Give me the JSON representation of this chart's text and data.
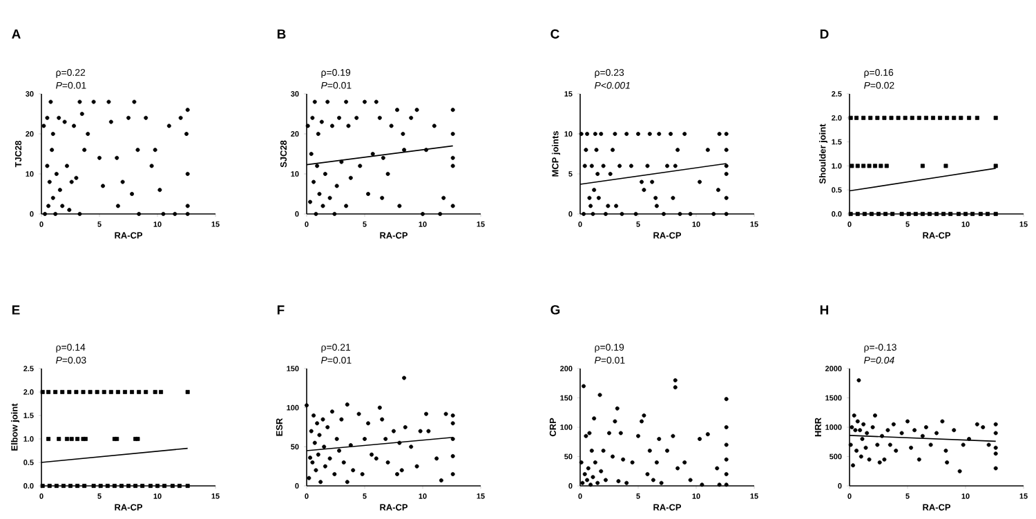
{
  "chart_data": [
    {
      "type": "scatter",
      "title": "A",
      "xlabel": "RA-CP",
      "ylabel": "TJC28",
      "annotations": [
        "ρ=0.22",
        "*P*=0.01"
      ],
      "xlim": [
        0,
        15
      ],
      "xticks": [
        0,
        5,
        10,
        15
      ],
      "ylim": [
        0,
        30
      ],
      "yticks": [
        0,
        10,
        20,
        30
      ],
      "marker": "circle",
      "series": [
        {
          "color": "#000000",
          "x": [
            0.2,
            0.3,
            0.5,
            0.5,
            0.6,
            0.7,
            0.8,
            0.9,
            1.0,
            1.0,
            1.2,
            1.3,
            1.5,
            1.6,
            1.8,
            2.0,
            2.2,
            2.4,
            2.6,
            2.8,
            3.0,
            3.3,
            3.3,
            3.5,
            3.7,
            4.0,
            4.5,
            5.0,
            5.3,
            5.8,
            6.0,
            6.5,
            6.6,
            7.0,
            7.5,
            7.8,
            8.0,
            8.3,
            8.4,
            9.0,
            9.5,
            9.8,
            10.2,
            10.5,
            11.0,
            11.5,
            12.0,
            12.5,
            12.6,
            12.6,
            12.6,
            12.6
          ],
          "values": [
            22,
            0,
            24,
            12,
            2,
            8,
            28,
            16,
            20,
            4,
            0,
            10,
            24,
            6,
            2,
            23,
            12,
            1,
            8,
            22,
            9,
            28,
            0,
            25,
            16,
            20,
            28,
            14,
            7,
            28,
            23,
            14,
            2,
            8,
            24,
            5,
            28,
            16,
            0,
            24,
            12,
            16,
            6,
            0,
            22,
            0,
            24,
            20,
            2,
            10,
            0,
            26
          ]
        }
      ]
    },
    {
      "type": "scatter",
      "title": "B",
      "xlabel": "RA-CP",
      "ylabel": "SJC28",
      "annotations": [
        "ρ=0.19",
        "*P*=0.01"
      ],
      "xlim": [
        0,
        15
      ],
      "xticks": [
        0,
        5,
        10,
        15
      ],
      "ylim": [
        0,
        30
      ],
      "yticks": [
        0,
        10,
        20,
        30
      ],
      "marker": "circle",
      "series": [
        {
          "color": "#000000",
          "x": [
            0.1,
            0.3,
            0.4,
            0.5,
            0.6,
            0.7,
            0.8,
            0.9,
            1.0,
            1.1,
            1.3,
            1.4,
            1.6,
            1.8,
            2.0,
            2.2,
            2.4,
            2.6,
            2.8,
            3.0,
            3.4,
            3.4,
            3.6,
            3.8,
            4.3,
            4.6,
            5.0,
            5.3,
            5.7,
            6.0,
            6.3,
            6.5,
            6.6,
            7.0,
            7.3,
            7.8,
            8.0,
            8.3,
            8.4,
            9.0,
            9.5,
            10.0,
            10.3,
            11.0,
            11.5,
            11.8,
            12.6,
            12.6,
            12.6,
            12.6,
            12.6
          ],
          "values": [
            22,
            3,
            15,
            24,
            8,
            28,
            0,
            12,
            20,
            5,
            23,
            2,
            10,
            28,
            4,
            22,
            0,
            7,
            24,
            13,
            28,
            2,
            22,
            9,
            24,
            12,
            28,
            5,
            15,
            28,
            24,
            4,
            14,
            10,
            22,
            26,
            2,
            20,
            16,
            24,
            26,
            0,
            16,
            22,
            0,
            4,
            26,
            20,
            14,
            2,
            12
          ]
        },
        {
          "type": "line",
          "marker": "none",
          "color": "#000000",
          "x": [
            0,
            12.6
          ],
          "values": [
            12.3,
            17
          ]
        }
      ]
    },
    {
      "type": "scatter",
      "title": "C",
      "xlabel": "RA-CP",
      "ylabel": "MCP joints",
      "annotations": [
        "ρ=0.23",
        "*P<0.001*"
      ],
      "xlim": [
        0,
        15
      ],
      "xticks": [
        0,
        5,
        10,
        15
      ],
      "ylim": [
        0,
        15
      ],
      "yticks": [
        0,
        5,
        10,
        15
      ],
      "marker": "circle",
      "series": [
        {
          "color": "#000000",
          "x": [
            0.1,
            0.3,
            0.4,
            0.5,
            0.6,
            0.8,
            0.9,
            1.0,
            1.1,
            1.2,
            1.3,
            1.4,
            1.5,
            1.6,
            1.8,
            2.0,
            2.2,
            2.4,
            2.6,
            2.8,
            3.0,
            3.1,
            3.4,
            3.6,
            4.0,
            4.4,
            4.8,
            5.0,
            5.3,
            5.5,
            5.8,
            6.0,
            6.2,
            6.5,
            6.6,
            6.8,
            7.2,
            7.5,
            7.8,
            8.0,
            8.2,
            8.4,
            8.6,
            9.0,
            9.5,
            10.3,
            11.0,
            11.5,
            11.9,
            12.0,
            12.6,
            12.6,
            12.6,
            12.6,
            12.6,
            12.6
          ],
          "values": [
            10,
            0,
            6,
            8,
            10,
            2,
            1,
            6,
            0,
            3,
            10,
            8,
            5,
            2,
            10,
            6,
            0,
            1,
            5,
            8,
            10,
            1,
            6,
            0,
            10,
            6,
            0,
            10,
            4,
            3,
            6,
            10,
            4,
            2,
            1,
            10,
            0,
            6,
            10,
            2,
            6,
            8,
            0,
            10,
            0,
            4,
            8,
            0,
            3,
            10,
            10,
            8,
            6,
            5,
            2,
            0
          ]
        },
        {
          "type": "line",
          "marker": "none",
          "color": "#000000",
          "x": [
            0,
            12.6
          ],
          "values": [
            3.7,
            6.3
          ]
        }
      ]
    },
    {
      "type": "scatter",
      "title": "D",
      "xlabel": "RA-CP",
      "ylabel": "Shoulder joint",
      "annotations": [
        "ρ=0.16",
        "*P*=0.02"
      ],
      "xlim": [
        0,
        15
      ],
      "xticks": [
        0,
        5,
        10,
        15
      ],
      "ylim": [
        0,
        2.5
      ],
      "yticks": [
        {
          "value": 0,
          "label": "0.0"
        },
        {
          "value": 0.5,
          "label": "0.5"
        },
        {
          "value": 1,
          "label": "1.0"
        },
        {
          "value": 1.5,
          "label": "1.5"
        },
        {
          "value": 2,
          "label": "2.0"
        },
        {
          "value": 2.5,
          "label": "2.5"
        }
      ],
      "marker": "square",
      "series": [
        {
          "color": "#000000",
          "x": [
            0.1,
            0.6,
            1.2,
            1.8,
            2.4,
            3.0,
            3.6,
            4.2,
            4.8,
            5.4,
            6.0,
            6.6,
            7.2,
            7.8,
            8.4,
            9.0,
            9.6,
            10.3,
            11.0,
            12.6,
            0.2,
            0.7,
            1.2,
            1.7,
            2.2,
            2.7,
            3.2,
            6.3,
            8.3,
            12.6,
            0.1,
            0.7,
            1.3,
            1.9,
            2.5,
            3.1,
            3.7,
            4.5,
            5.1,
            5.7,
            6.3,
            6.9,
            7.5,
            8.1,
            8.7,
            9.4,
            10.0,
            10.6,
            11.3,
            11.9,
            12.6
          ],
          "values": [
            2,
            2,
            2,
            2,
            2,
            2,
            2,
            2,
            2,
            2,
            2,
            2,
            2,
            2,
            2,
            2,
            2,
            2,
            2,
            2,
            1,
            1,
            1,
            1,
            1,
            1,
            1,
            1,
            1,
            1,
            0,
            0,
            0,
            0,
            0,
            0,
            0,
            0,
            0,
            0,
            0,
            0,
            0,
            0,
            0,
            0,
            0,
            0,
            0,
            0,
            0
          ]
        },
        {
          "type": "line",
          "marker": "none",
          "color": "#000000",
          "x": [
            0,
            12.6
          ],
          "values": [
            0.48,
            0.95
          ]
        }
      ]
    },
    {
      "type": "scatter",
      "title": "E",
      "xlabel": "RA-CP",
      "ylabel": "Elbow joint",
      "annotations": [
        "ρ=0.14",
        "*P*=0.03"
      ],
      "xlim": [
        0,
        15
      ],
      "xticks": [
        0,
        5,
        10,
        15
      ],
      "ylim": [
        0,
        2.5
      ],
      "yticks": [
        {
          "value": 0,
          "label": "0.0"
        },
        {
          "value": 0.5,
          "label": "0.5"
        },
        {
          "value": 1,
          "label": "1.0"
        },
        {
          "value": 1.5,
          "label": "1.5"
        },
        {
          "value": 2,
          "label": "2.0"
        },
        {
          "value": 2.5,
          "label": "2.5"
        }
      ],
      "marker": "square",
      "series": [
        {
          "color": "#000000",
          "x": [
            0.1,
            0.6,
            1.2,
            1.8,
            2.4,
            3.0,
            3.6,
            4.2,
            4.8,
            5.4,
            6.0,
            6.6,
            7.2,
            7.8,
            8.4,
            9.0,
            9.8,
            10.3,
            12.6,
            0.6,
            1.5,
            2.2,
            2.6,
            3.1,
            3.6,
            3.8,
            6.3,
            6.5,
            8.1,
            8.3,
            0.1,
            0.7,
            1.3,
            1.9,
            2.5,
            3.1,
            3.7,
            4.5,
            5.1,
            5.7,
            6.3,
            6.9,
            7.5,
            8.1,
            8.7,
            9.4,
            10.0,
            10.6,
            11.3,
            11.9,
            12.6
          ],
          "values": [
            2,
            2,
            2,
            2,
            2,
            2,
            2,
            2,
            2,
            2,
            2,
            2,
            2,
            2,
            2,
            2,
            2,
            2,
            2,
            1,
            1,
            1,
            1,
            1,
            1,
            1,
            1,
            1,
            1,
            1,
            0,
            0,
            0,
            0,
            0,
            0,
            0,
            0,
            0,
            0,
            0,
            0,
            0,
            0,
            0,
            0,
            0,
            0,
            0,
            0,
            0
          ]
        },
        {
          "type": "line",
          "marker": "none",
          "color": "#000000",
          "x": [
            0,
            12.6
          ],
          "values": [
            0.5,
            0.8
          ]
        }
      ]
    },
    {
      "type": "scatter",
      "title": "F",
      "xlabel": "RA-CP",
      "ylabel": "ESR",
      "annotations": [
        "ρ=0.21",
        "*P*=0.01"
      ],
      "xlim": [
        0,
        15
      ],
      "xticks": [
        0,
        5,
        10,
        15
      ],
      "ylim": [
        0,
        150
      ],
      "yticks": [
        0,
        50,
        100,
        150
      ],
      "marker": "circle",
      "series": [
        {
          "color": "#000000",
          "x": [
            0.0,
            0.2,
            0.3,
            0.4,
            0.5,
            0.6,
            0.7,
            0.8,
            0.9,
            1.0,
            1.1,
            1.2,
            1.4,
            1.5,
            1.6,
            1.8,
            2.0,
            2.2,
            2.4,
            2.6,
            2.8,
            3.0,
            3.2,
            3.5,
            3.5,
            3.8,
            4.0,
            4.5,
            4.8,
            5.0,
            5.3,
            5.6,
            6.0,
            6.3,
            6.5,
            6.8,
            7.0,
            7.5,
            7.8,
            8.0,
            8.2,
            8.4,
            8.5,
            9.0,
            9.5,
            9.8,
            10.3,
            10.5,
            11.2,
            11.6,
            12.0,
            12.6,
            12.6,
            12.6,
            12.6,
            12.6
          ],
          "values": [
            103,
            10,
            36,
            70,
            30,
            90,
            55,
            20,
            80,
            40,
            65,
            5,
            85,
            50,
            25,
            75,
            35,
            95,
            15,
            60,
            45,
            85,
            30,
            104,
            5,
            52,
            20,
            92,
            15,
            60,
            80,
            40,
            35,
            100,
            85,
            60,
            30,
            70,
            15,
            55,
            20,
            138,
            75,
            50,
            25,
            70,
            92,
            70,
            35,
            7,
            92,
            90,
            80,
            60,
            38,
            15
          ]
        },
        {
          "type": "line",
          "marker": "none",
          "color": "#000000",
          "x": [
            0,
            12.6
          ],
          "values": [
            45,
            62
          ]
        }
      ]
    },
    {
      "type": "scatter",
      "title": "G",
      "xlabel": "RA-CP",
      "ylabel": "CRP",
      "annotations": [
        "ρ=0.19",
        "*P*=0.01"
      ],
      "xlim": [
        0,
        15
      ],
      "xticks": [
        0,
        5,
        10,
        15
      ],
      "ylim": [
        0,
        200
      ],
      "yticks": [
        0,
        50,
        100,
        150,
        200
      ],
      "marker": "circle",
      "series": [
        {
          "color": "#000000",
          "x": [
            0.1,
            0.2,
            0.3,
            0.4,
            0.5,
            0.6,
            0.7,
            0.8,
            0.9,
            1.0,
            1.1,
            1.2,
            1.3,
            1.5,
            1.7,
            1.8,
            2.0,
            2.2,
            2.5,
            2.8,
            3.0,
            3.2,
            3.3,
            3.5,
            3.7,
            4.0,
            4.5,
            5.0,
            5.3,
            5.5,
            5.8,
            6.0,
            6.3,
            6.6,
            6.8,
            7.0,
            7.5,
            8.0,
            8.2,
            8.2,
            8.4,
            9.0,
            9.5,
            10.3,
            10.5,
            11.0,
            11.8,
            12.0,
            12.6,
            12.6,
            12.6,
            12.6,
            12.6,
            12.6
          ],
          "values": [
            40,
            5,
            170,
            20,
            85,
            10,
            30,
            90,
            2,
            60,
            15,
            115,
            40,
            5,
            155,
            25,
            60,
            10,
            90,
            50,
            110,
            132,
            8,
            90,
            45,
            5,
            40,
            85,
            110,
            120,
            20,
            60,
            10,
            40,
            80,
            5,
            60,
            85,
            180,
            168,
            30,
            40,
            10,
            80,
            2,
            88,
            30,
            2,
            148,
            100,
            70,
            45,
            20,
            2
          ]
        }
      ]
    },
    {
      "type": "scatter",
      "title": "H",
      "xlabel": "RA-CP",
      "ylabel": "HRR",
      "annotations": [
        "ρ=-0.13",
        "*P=0.04*"
      ],
      "xlim": [
        0,
        15
      ],
      "xticks": [
        0,
        5,
        10,
        15
      ],
      "ylim": [
        0,
        2000
      ],
      "yticks": [
        0,
        500,
        1000,
        1500,
        2000
      ],
      "marker": "circle",
      "series": [
        {
          "color": "#000000",
          "x": [
            0.1,
            0.2,
            0.3,
            0.4,
            0.5,
            0.6,
            0.7,
            0.8,
            0.9,
            1.0,
            1.1,
            1.2,
            1.4,
            1.5,
            1.7,
            2.0,
            2.2,
            2.4,
            2.6,
            2.8,
            3.0,
            3.3,
            3.5,
            3.8,
            4.0,
            4.5,
            5.0,
            5.3,
            5.6,
            6.0,
            6.3,
            6.6,
            7.0,
            7.5,
            8.0,
            8.3,
            8.4,
            9.0,
            9.5,
            9.8,
            10.3,
            11.0,
            11.5,
            12.0,
            12.6,
            12.6,
            12.6,
            12.6,
            12.6
          ],
          "values": [
            700,
            1000,
            350,
            1200,
            950,
            600,
            1100,
            1800,
            950,
            500,
            800,
            1050,
            650,
            900,
            450,
            1000,
            1200,
            700,
            400,
            850,
            450,
            950,
            700,
            1050,
            600,
            900,
            1100,
            650,
            950,
            450,
            850,
            1000,
            700,
            900,
            1100,
            600,
            400,
            950,
            250,
            700,
            800,
            1050,
            1000,
            700,
            1050,
            900,
            650,
            550,
            300
          ]
        },
        {
          "type": "line",
          "marker": "none",
          "color": "#000000",
          "x": [
            0,
            12.6
          ],
          "values": [
            860,
            760
          ]
        }
      ]
    }
  ]
}
